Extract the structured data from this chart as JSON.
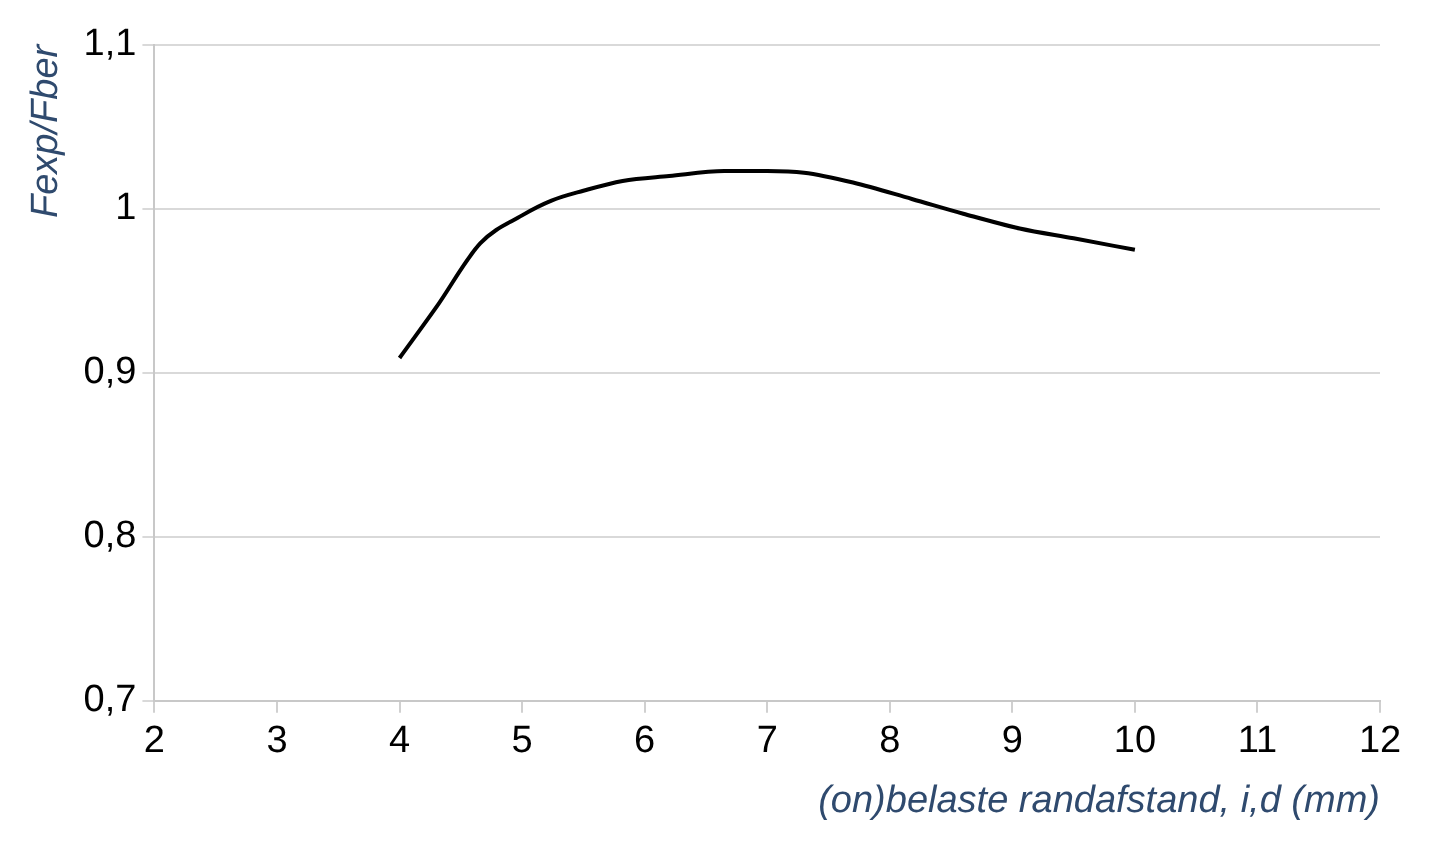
{
  "chart_data": {
    "type": "line",
    "xlabel": "(on)belaste randafstand, i,d (mm)",
    "ylabel": "Fexp/Fber",
    "x": [
      4,
      4.3,
      4.66,
      5,
      5.24,
      5.5,
      5.82,
      6.2,
      6.65,
      7,
      7.3,
      7.7,
      8.18,
      8.6,
      9.06,
      9.5,
      10
    ],
    "series": [
      {
        "color": "#000000",
        "values": [
          0.909,
          0.94,
          0.979,
          0.996,
          1.005,
          1.011,
          1.017,
          1.02,
          1.023,
          1.023,
          1.022,
          1.016,
          1.006,
          0.997,
          0.988,
          0.982,
          0.975
        ]
      }
    ],
    "xlim": [
      2,
      12
    ],
    "xticks": [
      2,
      3,
      4,
      5,
      6,
      7,
      8,
      9,
      10,
      11,
      12
    ],
    "ylim": [
      0.7,
      1.1
    ],
    "yticks": [
      {
        "value": 0.7,
        "label": "0,7"
      },
      {
        "value": 0.8,
        "label": "0,8"
      },
      {
        "value": 0.9,
        "label": "0,9"
      },
      {
        "value": 1,
        "label": "1"
      },
      {
        "value": 1.1,
        "label": "1,1"
      }
    ],
    "grid": "y",
    "legend": false,
    "marker": "none",
    "line_style": "solid"
  }
}
